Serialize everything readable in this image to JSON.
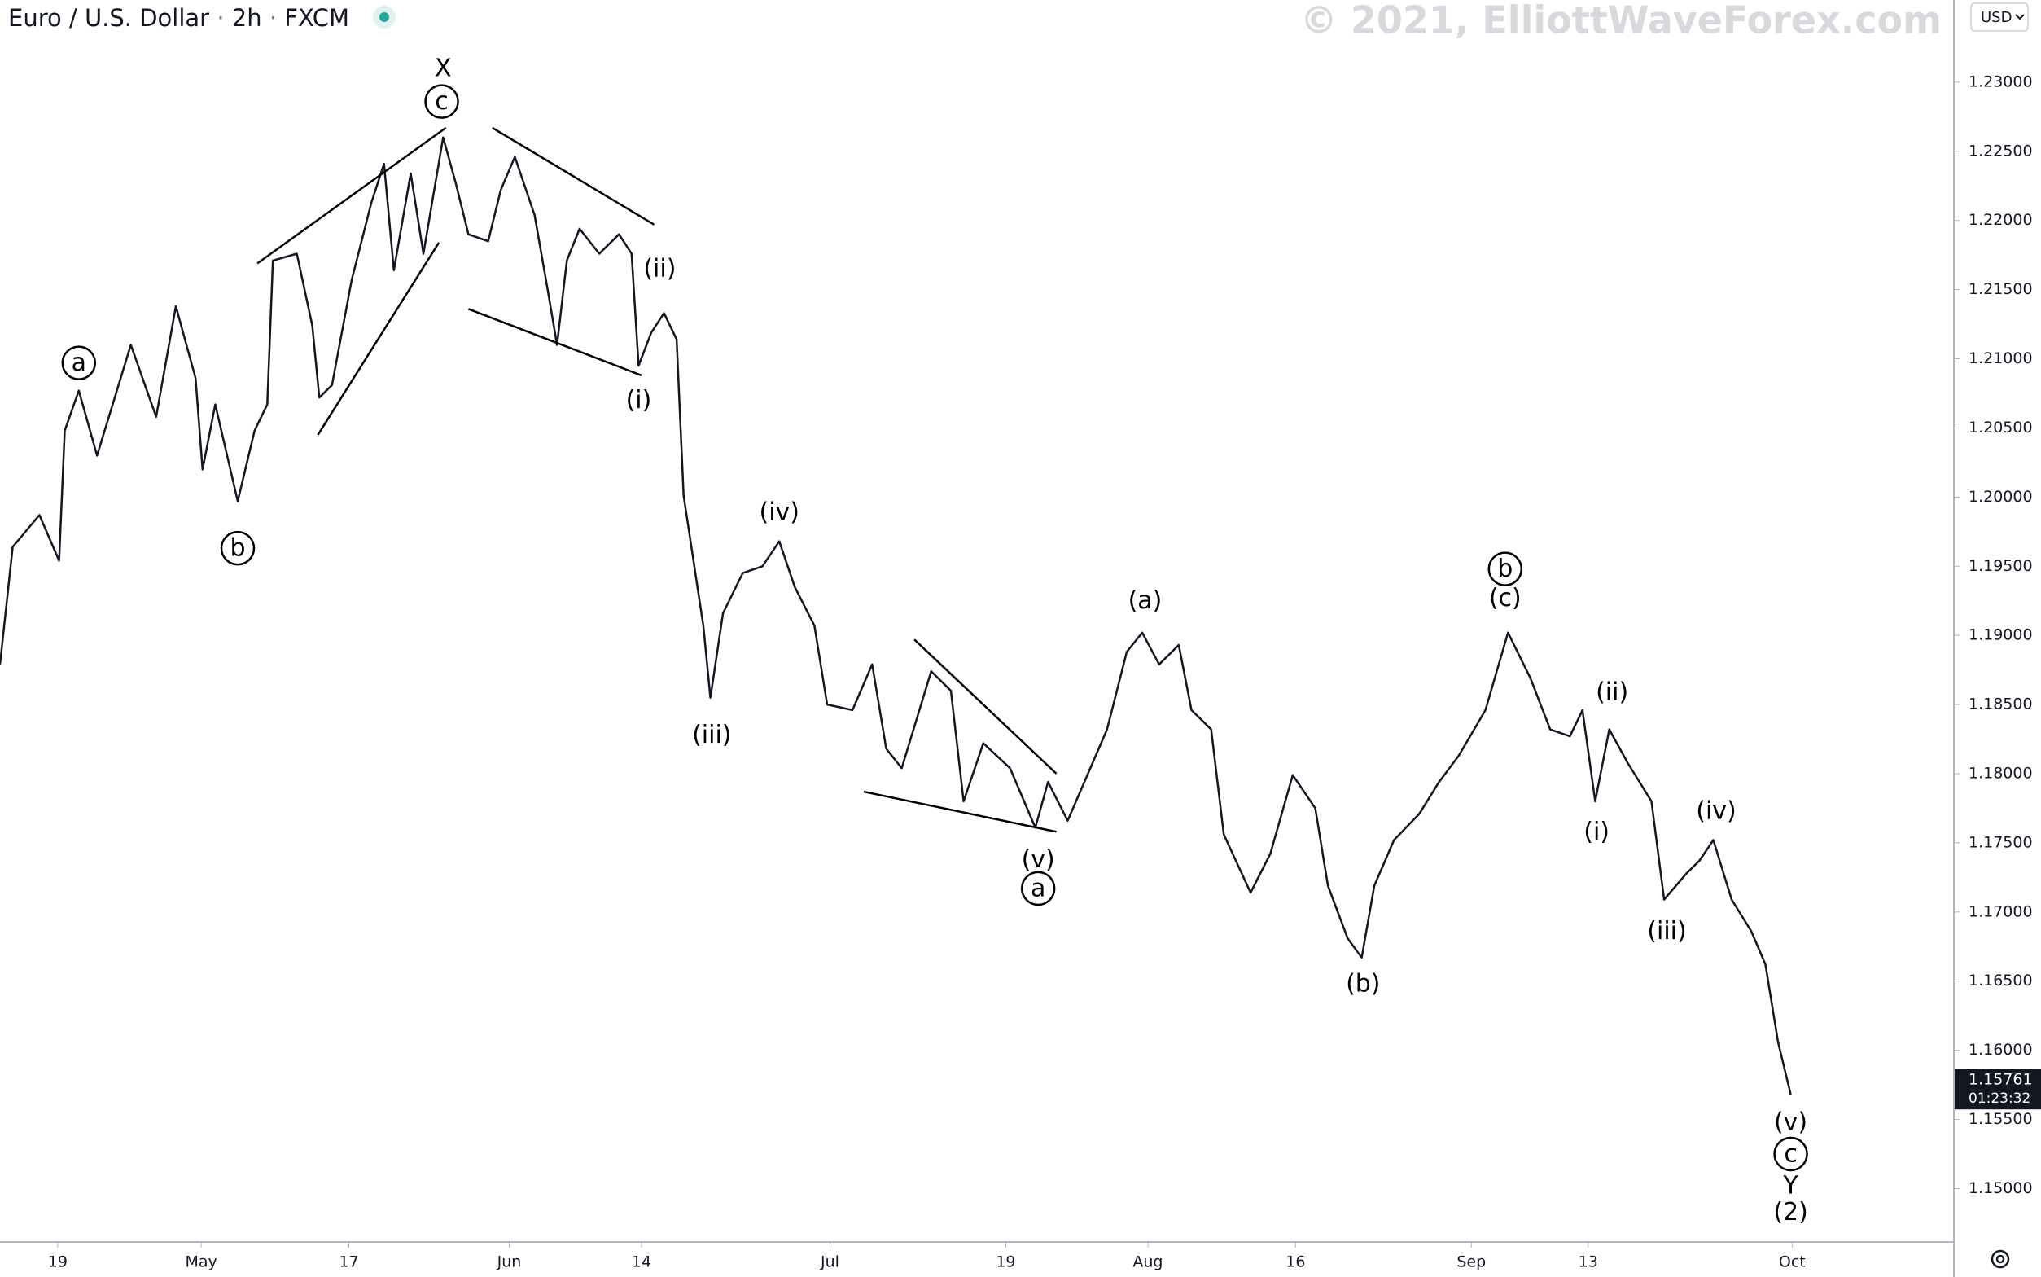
{
  "chart_data": {
    "type": "line",
    "symbol": "Euro / U.S. Dollar",
    "interval": "2h",
    "source": "FXCM",
    "watermark": "© 2021, ElliottWaveForex.com",
    "currency": "USD",
    "last_price": 1.15761,
    "countdown": "01:23:32",
    "color": "#131722",
    "x": [
      0,
      9,
      28,
      42,
      46,
      56,
      69,
      93,
      111,
      125,
      139,
      144,
      153,
      169,
      181,
      190,
      194,
      211,
      222,
      227,
      236,
      250,
      264,
      273,
      280,
      292,
      301,
      315,
      324,
      333,
      347,
      356,
      366,
      380,
      389,
      396,
      403,
      412,
      426,
      440,
      449,
      454,
      463,
      472,
      481,
      486,
      500,
      505,
      514,
      528,
      542,
      554,
      565,
      579,
      588,
      606,
      620,
      630,
      641,
      662,
      676,
      685,
      699,
      718,
      736,
      745,
      759,
      773,
      787,
      801,
      812,
      824,
      838,
      847,
      861,
      870,
      889,
      903,
      919,
      935,
      944,
      958,
      968,
      977,
      991,
      1009,
      1023,
      1037,
      1056,
      1072,
      1088,
      1102,
      1116,
      1125,
      1134,
      1144,
      1157,
      1174,
      1183,
      1199,
      1208,
      1218,
      1231,
      1245,
      1255,
      1264,
      1273
    ],
    "values": [
      1.1879,
      1.1964,
      1.1987,
      1.1954,
      1.2048,
      1.2077,
      1.203,
      1.211,
      1.2058,
      1.2138,
      1.2086,
      1.202,
      1.2067,
      1.1997,
      1.2048,
      1.2067,
      1.2171,
      1.2176,
      1.2124,
      1.2072,
      1.2081,
      1.2157,
      1.2213,
      1.2241,
      1.2164,
      1.2234,
      1.2176,
      1.226,
      1.2227,
      1.219,
      1.2185,
      1.2222,
      1.2246,
      1.2204,
      1.2152,
      1.211,
      1.2171,
      1.2194,
      1.2176,
      1.219,
      1.2176,
      1.2095,
      1.2119,
      1.2133,
      1.2114,
      1.2001,
      1.1907,
      1.1855,
      1.1916,
      1.1945,
      1.195,
      1.1968,
      1.1935,
      1.1907,
      1.185,
      1.1846,
      1.1879,
      1.1818,
      1.1804,
      1.1874,
      1.186,
      1.178,
      1.1822,
      1.1804,
      1.1761,
      1.1794,
      1.1766,
      1.1799,
      1.1832,
      1.1888,
      1.1902,
      1.1879,
      1.1893,
      1.1846,
      1.1832,
      1.1756,
      1.1714,
      1.1742,
      1.1799,
      1.1775,
      1.1719,
      1.1681,
      1.1667,
      1.1719,
      1.1752,
      1.1771,
      1.1794,
      1.1813,
      1.1846,
      1.1902,
      1.1869,
      1.1832,
      1.1827,
      1.1846,
      1.178,
      1.1832,
      1.1808,
      1.178,
      1.1709,
      1.1728,
      1.1737,
      1.1752,
      1.1709,
      1.1686,
      1.1662,
      1.1606,
      1.1568
    ],
    "xlim": [
      0,
      1389
    ],
    "xticks": [
      {
        "value": 41,
        "label": "19"
      },
      {
        "value": 143,
        "label": "May"
      },
      {
        "value": 248,
        "label": "17"
      },
      {
        "value": 362,
        "label": "Jun"
      },
      {
        "value": 456,
        "label": "14"
      },
      {
        "value": 590,
        "label": "Jul"
      },
      {
        "value": 715,
        "label": "19"
      },
      {
        "value": 816,
        "label": "Aug"
      },
      {
        "value": 921,
        "label": "16"
      },
      {
        "value": 1046,
        "label": "Sep"
      },
      {
        "value": 1129,
        "label": "13"
      },
      {
        "value": 1274,
        "label": "Oct"
      }
    ],
    "ylim": [
      1.14614,
      1.23594
    ],
    "yticks": [
      {
        "value": 1.15,
        "label": "1.15000"
      },
      {
        "value": 1.155,
        "label": "1.15500"
      },
      {
        "value": 1.16,
        "label": "1.16000"
      },
      {
        "value": 1.165,
        "label": "1.16500"
      },
      {
        "value": 1.17,
        "label": "1.17000"
      },
      {
        "value": 1.175,
        "label": "1.17500"
      },
      {
        "value": 1.18,
        "label": "1.18000"
      },
      {
        "value": 1.185,
        "label": "1.18500"
      },
      {
        "value": 1.19,
        "label": "1.19000"
      },
      {
        "value": 1.195,
        "label": "1.19500"
      },
      {
        "value": 1.2,
        "label": "1.20000"
      },
      {
        "value": 1.205,
        "label": "1.20500"
      },
      {
        "value": 1.21,
        "label": "1.21000"
      },
      {
        "value": 1.215,
        "label": "1.21500"
      },
      {
        "value": 1.22,
        "label": "1.22000"
      },
      {
        "value": 1.225,
        "label": "1.22500"
      },
      {
        "value": 1.23,
        "label": "1.23000"
      }
    ],
    "annotations": [
      {
        "text": "X",
        "x": 315,
        "y": 1.231,
        "circled": false
      },
      {
        "text": "c",
        "x": 314,
        "y": 1.2286,
        "circled": true
      },
      {
        "text": "a",
        "x": 56,
        "y": 1.2097,
        "circled": true
      },
      {
        "text": "b",
        "x": 169,
        "y": 1.1963,
        "circled": true
      },
      {
        "text": "(ii)",
        "x": 469,
        "y": 1.2165,
        "circled": false
      },
      {
        "text": "(i)",
        "x": 454,
        "y": 1.207,
        "circled": false
      },
      {
        "text": "(iv)",
        "x": 554,
        "y": 1.1989,
        "circled": false
      },
      {
        "text": "(iii)",
        "x": 506,
        "y": 1.1828,
        "circled": false
      },
      {
        "text": "(v)",
        "x": 738,
        "y": 1.1738,
        "circled": false
      },
      {
        "text": "a",
        "x": 738,
        "y": 1.1717,
        "circled": true
      },
      {
        "text": "(a)",
        "x": 814,
        "y": 1.1925,
        "circled": false
      },
      {
        "text": "b",
        "x": 1070,
        "y": 1.1948,
        "circled": true
      },
      {
        "text": "(c)",
        "x": 1070,
        "y": 1.1927,
        "circled": false
      },
      {
        "text": "(b)",
        "x": 969,
        "y": 1.1648,
        "circled": false
      },
      {
        "text": "(ii)",
        "x": 1146,
        "y": 1.1859,
        "circled": false
      },
      {
        "text": "(i)",
        "x": 1135,
        "y": 1.1758,
        "circled": false
      },
      {
        "text": "(iv)",
        "x": 1220,
        "y": 1.1773,
        "circled": false
      },
      {
        "text": "(iii)",
        "x": 1185,
        "y": 1.1686,
        "circled": false
      },
      {
        "text": "(v)",
        "x": 1273,
        "y": 1.1548,
        "circled": false
      },
      {
        "text": "c",
        "x": 1273,
        "y": 1.1525,
        "circled": true
      },
      {
        "text": "Y",
        "x": 1273,
        "y": 1.1502,
        "circled": false
      },
      {
        "text": "(2)",
        "x": 1273,
        "y": 1.1483,
        "circled": false
      }
    ],
    "lines": [
      {
        "x": [
          183,
          317
        ],
        "y": [
          1.2169,
          1.2267
        ]
      },
      {
        "x": [
          226,
          312
        ],
        "y": [
          1.2045,
          1.2184
        ]
      },
      {
        "x": [
          350,
          465
        ],
        "y": [
          1.2267,
          1.2197
        ]
      },
      {
        "x": [
          333,
          456
        ],
        "y": [
          1.2136,
          1.2088
        ]
      },
      {
        "x": [
          650,
          751
        ],
        "y": [
          1.1897,
          1.18
        ]
      },
      {
        "x": [
          614,
          751
        ],
        "y": [
          1.1787,
          1.1758
        ]
      }
    ]
  }
}
